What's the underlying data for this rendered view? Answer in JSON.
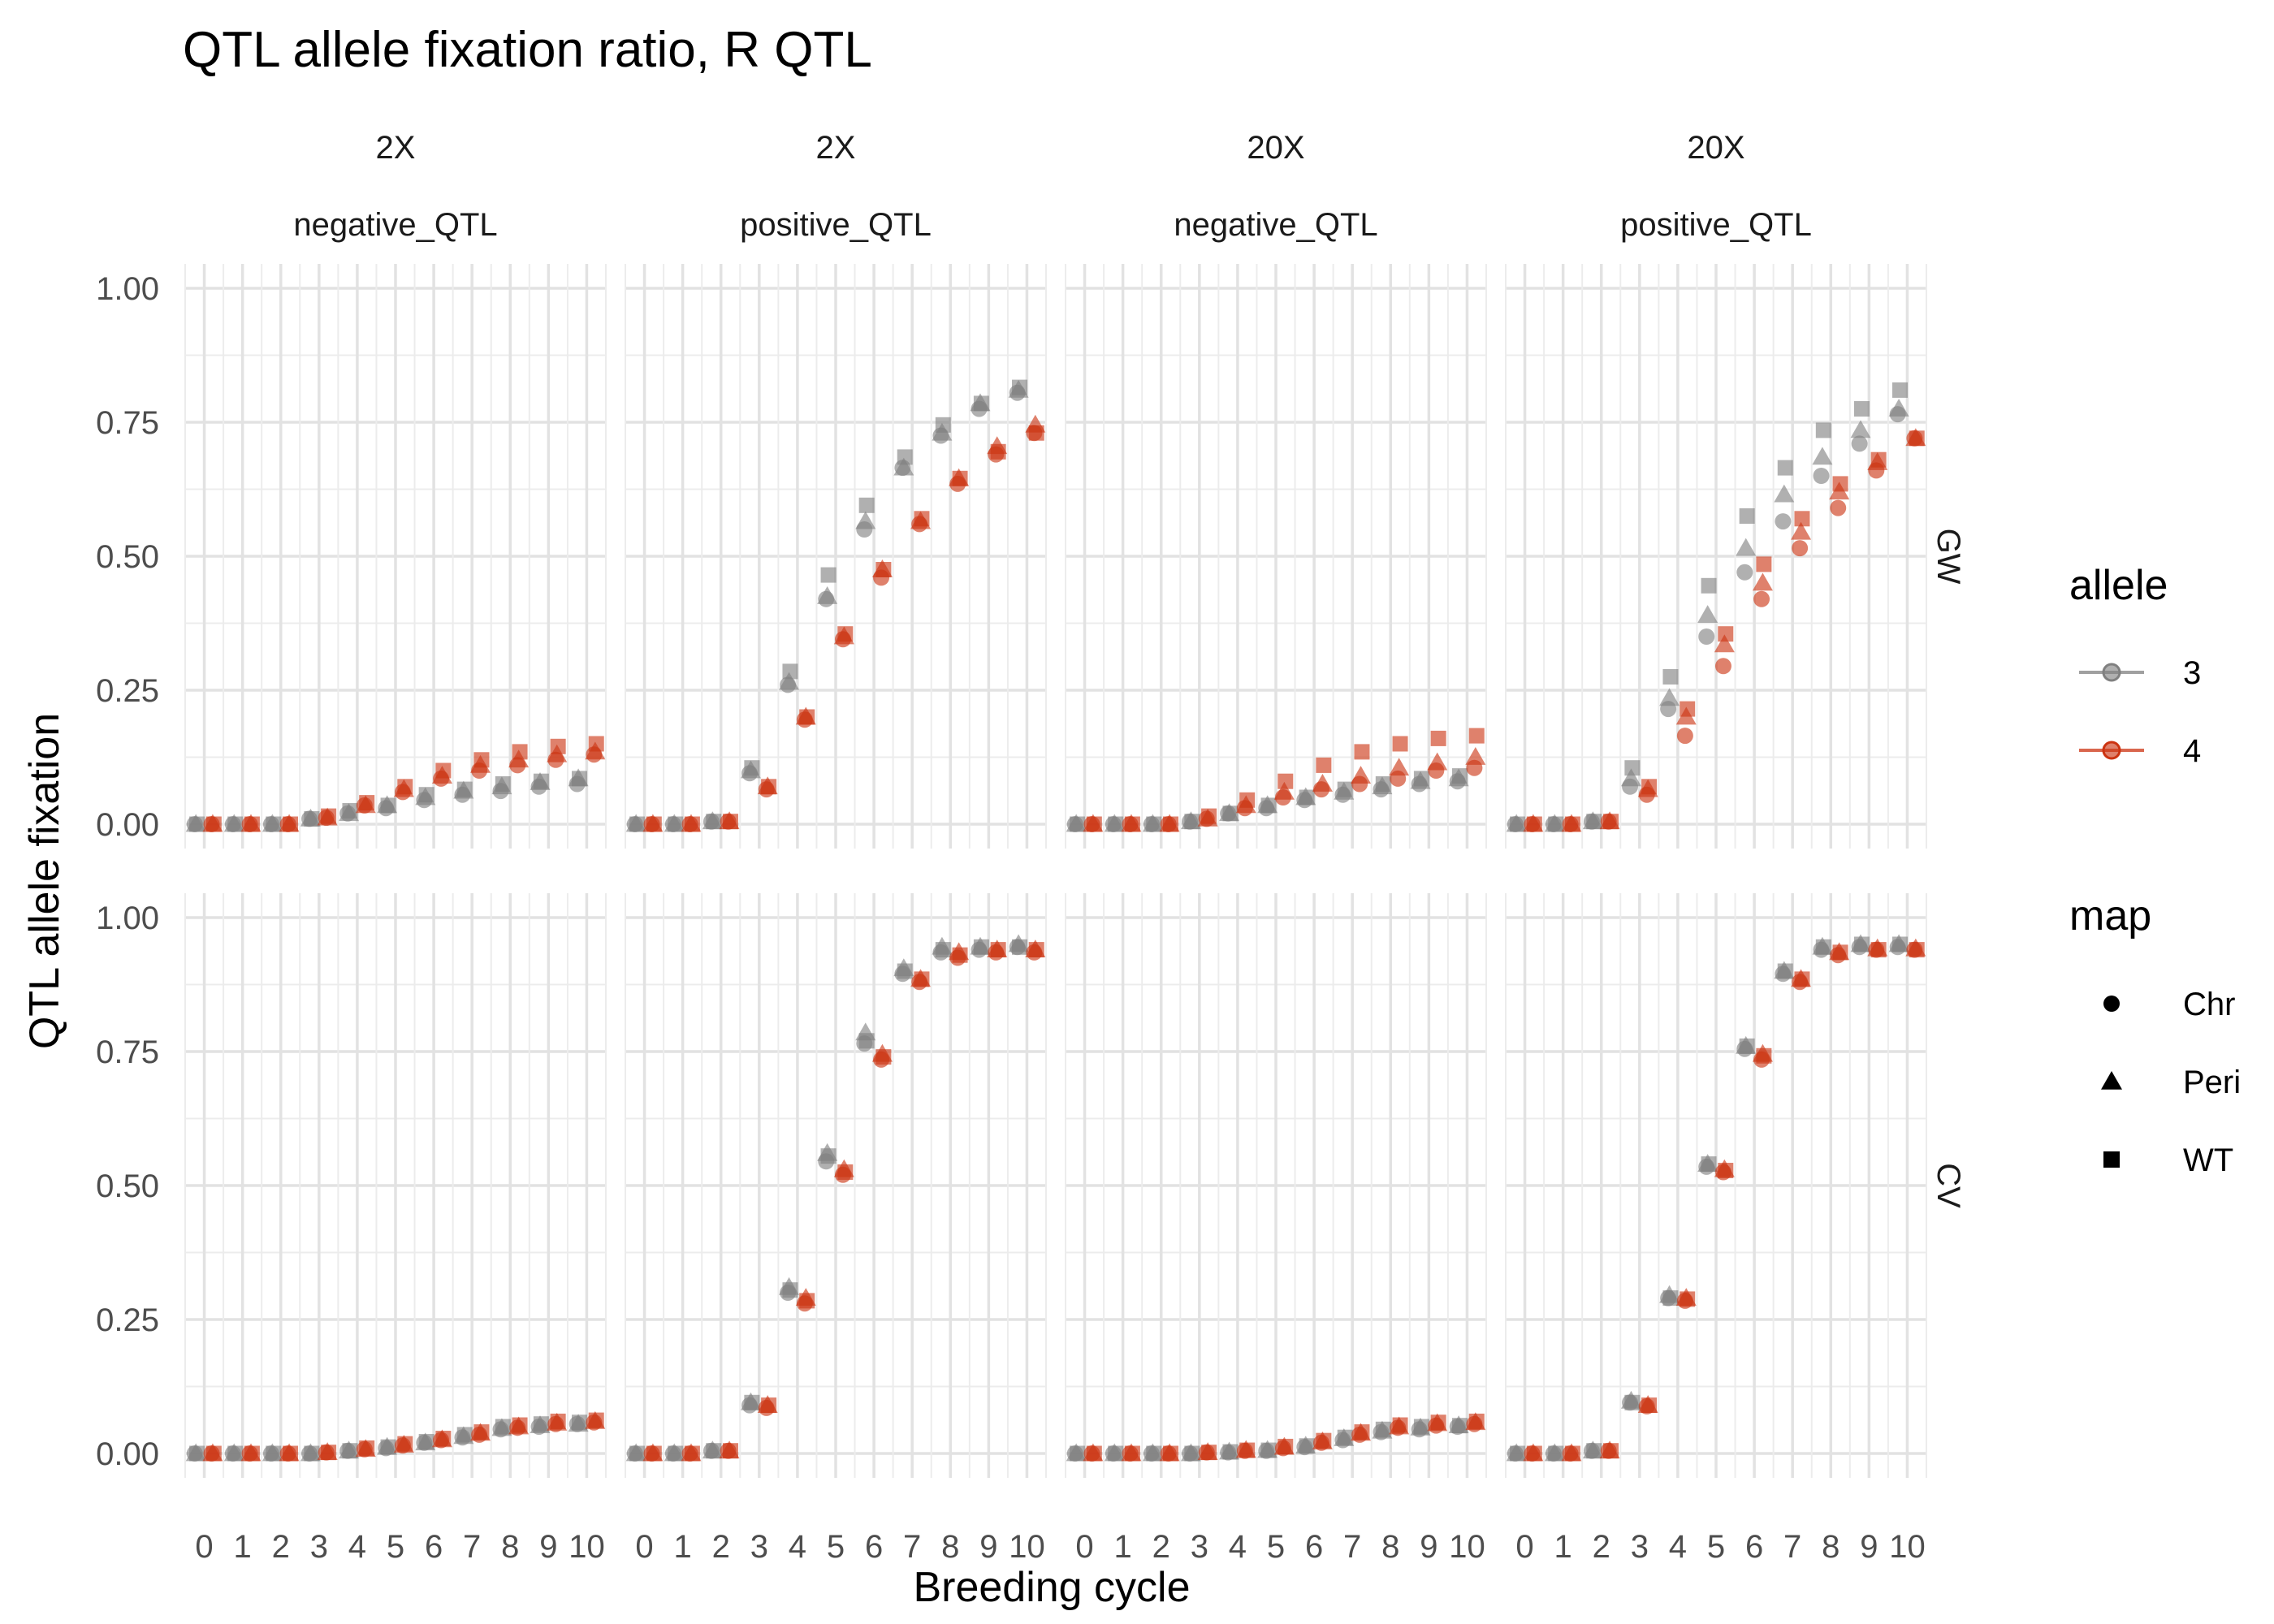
{
  "chart_data": {
    "type": "scatter",
    "title": "QTL allele fixation ratio, R QTL",
    "xlabel": "Breeding cycle",
    "ylabel": "QTL allele fixation",
    "xlim": [
      -0.5,
      10.5
    ],
    "ylim": [
      0,
      1
    ],
    "x_ticks": [
      "0",
      "1",
      "2",
      "3",
      "4",
      "5",
      "6",
      "7",
      "8",
      "9",
      "10"
    ],
    "y_ticks": [
      "0.00",
      "0.25",
      "0.50",
      "0.75",
      "1.00"
    ],
    "y_tick_values": [
      0,
      0.25,
      0.5,
      0.75,
      1.0
    ],
    "grid": true,
    "legend_position": "right",
    "col_facets": [
      {
        "top": "2X",
        "bottom": "negative_QTL"
      },
      {
        "top": "2X",
        "bottom": "positive_QTL"
      },
      {
        "top": "20X",
        "bottom": "negative_QTL"
      },
      {
        "top": "20X",
        "bottom": "positive_QTL"
      }
    ],
    "row_facets": [
      "GW",
      "CV"
    ],
    "colors": {
      "3": "#808080",
      "4": "#cc3311"
    },
    "legend": {
      "allele_title": "allele",
      "allele_items": [
        "3",
        "4"
      ],
      "map_title": "map",
      "map_items": [
        {
          "label": "Chr",
          "shape": "circle"
        },
        {
          "label": "Peri",
          "shape": "triangle"
        },
        {
          "label": "WT",
          "shape": "square"
        }
      ]
    },
    "x": [
      0,
      1,
      2,
      3,
      4,
      5,
      6,
      7,
      8,
      9,
      10
    ],
    "panels": [
      {
        "row": "GW",
        "col": 0,
        "series": [
          {
            "allele": "3",
            "map": "Chr",
            "values": [
              0,
              0,
              0,
              0.01,
              0.02,
              0.03,
              0.045,
              0.055,
              0.062,
              0.07,
              0.075
            ]
          },
          {
            "allele": "3",
            "map": "Peri",
            "values": [
              0,
              0,
              0,
              0.01,
              0.02,
              0.035,
              0.05,
              0.062,
              0.07,
              0.078,
              0.085
            ]
          },
          {
            "allele": "3",
            "map": "WT",
            "values": [
              0,
              0,
              0,
              0.01,
              0.025,
              0.035,
              0.055,
              0.065,
              0.075,
              0.08,
              0.085
            ]
          },
          {
            "allele": "4",
            "map": "Chr",
            "values": [
              0,
              0,
              0,
              0.012,
              0.035,
              0.06,
              0.085,
              0.1,
              0.11,
              0.12,
              0.13
            ]
          },
          {
            "allele": "4",
            "map": "Peri",
            "values": [
              0,
              0,
              0,
              0.012,
              0.035,
              0.065,
              0.09,
              0.11,
              0.12,
              0.13,
              0.135
            ]
          },
          {
            "allele": "4",
            "map": "WT",
            "values": [
              0,
              0,
              0,
              0.015,
              0.04,
              0.07,
              0.1,
              0.12,
              0.135,
              0.145,
              0.15
            ]
          }
        ]
      },
      {
        "row": "GW",
        "col": 1,
        "series": [
          {
            "allele": "3",
            "map": "Chr",
            "values": [
              0,
              0,
              0.005,
              0.095,
              0.26,
              0.42,
              0.55,
              0.665,
              0.725,
              0.775,
              0.805
            ]
          },
          {
            "allele": "3",
            "map": "Peri",
            "values": [
              0,
              0,
              0.005,
              0.1,
              0.265,
              0.425,
              0.565,
              0.665,
              0.73,
              0.785,
              0.81
            ]
          },
          {
            "allele": "3",
            "map": "WT",
            "values": [
              0,
              0,
              0.005,
              0.105,
              0.285,
              0.465,
              0.595,
              0.685,
              0.745,
              0.785,
              0.815
            ]
          },
          {
            "allele": "4",
            "map": "Chr",
            "values": [
              0,
              0,
              0.005,
              0.065,
              0.195,
              0.345,
              0.46,
              0.56,
              0.635,
              0.69,
              0.73
            ]
          },
          {
            "allele": "4",
            "map": "Peri",
            "values": [
              0,
              0,
              0.005,
              0.07,
              0.2,
              0.35,
              0.475,
              0.565,
              0.645,
              0.705,
              0.745
            ]
          },
          {
            "allele": "4",
            "map": "WT",
            "values": [
              0,
              0,
              0.005,
              0.07,
              0.2,
              0.355,
              0.475,
              0.57,
              0.645,
              0.695,
              0.73
            ]
          }
        ]
      },
      {
        "row": "GW",
        "col": 2,
        "series": [
          {
            "allele": "3",
            "map": "Chr",
            "values": [
              0,
              0,
              0,
              0.005,
              0.02,
              0.03,
              0.045,
              0.055,
              0.065,
              0.075,
              0.08
            ]
          },
          {
            "allele": "3",
            "map": "Peri",
            "values": [
              0,
              0,
              0,
              0.005,
              0.02,
              0.035,
              0.05,
              0.06,
              0.07,
              0.08,
              0.085
            ]
          },
          {
            "allele": "3",
            "map": "WT",
            "values": [
              0,
              0,
              0,
              0.005,
              0.02,
              0.035,
              0.05,
              0.065,
              0.075,
              0.085,
              0.09
            ]
          },
          {
            "allele": "4",
            "map": "Chr",
            "values": [
              0,
              0,
              0,
              0.01,
              0.03,
              0.05,
              0.065,
              0.075,
              0.085,
              0.1,
              0.105
            ]
          },
          {
            "allele": "4",
            "map": "Peri",
            "values": [
              0,
              0,
              0,
              0.01,
              0.035,
              0.06,
              0.075,
              0.09,
              0.105,
              0.115,
              0.125
            ]
          },
          {
            "allele": "4",
            "map": "WT",
            "values": [
              0,
              0,
              0,
              0.015,
              0.045,
              0.08,
              0.11,
              0.135,
              0.15,
              0.16,
              0.165
            ]
          }
        ]
      },
      {
        "row": "GW",
        "col": 3,
        "series": [
          {
            "allele": "3",
            "map": "Chr",
            "values": [
              0,
              0,
              0.005,
              0.07,
              0.215,
              0.35,
              0.47,
              0.565,
              0.65,
              0.71,
              0.765
            ]
          },
          {
            "allele": "3",
            "map": "Peri",
            "values": [
              0,
              0,
              0.005,
              0.085,
              0.235,
              0.39,
              0.515,
              0.615,
              0.685,
              0.735,
              0.775
            ]
          },
          {
            "allele": "3",
            "map": "WT",
            "values": [
              0,
              0,
              0.005,
              0.105,
              0.275,
              0.445,
              0.575,
              0.665,
              0.735,
              0.775,
              0.81
            ]
          },
          {
            "allele": "4",
            "map": "Chr",
            "values": [
              0,
              0,
              0.005,
              0.055,
              0.165,
              0.295,
              0.42,
              0.515,
              0.59,
              0.66,
              0.72
            ]
          },
          {
            "allele": "4",
            "map": "Peri",
            "values": [
              0,
              0,
              0.005,
              0.065,
              0.2,
              0.335,
              0.45,
              0.545,
              0.62,
              0.675,
              0.72
            ]
          },
          {
            "allele": "4",
            "map": "WT",
            "values": [
              0,
              0,
              0.005,
              0.07,
              0.215,
              0.355,
              0.485,
              0.57,
              0.635,
              0.68,
              0.72
            ]
          }
        ]
      },
      {
        "row": "CV",
        "col": 0,
        "series": [
          {
            "allele": "3",
            "map": "Chr",
            "values": [
              0,
              0,
              0,
              0,
              0.005,
              0.01,
              0.02,
              0.03,
              0.045,
              0.05,
              0.055
            ]
          },
          {
            "allele": "3",
            "map": "Peri",
            "values": [
              0,
              0,
              0,
              0,
              0.005,
              0.012,
              0.02,
              0.032,
              0.047,
              0.052,
              0.055
            ]
          },
          {
            "allele": "3",
            "map": "WT",
            "values": [
              0,
              0,
              0,
              0,
              0.005,
              0.012,
              0.022,
              0.035,
              0.05,
              0.055,
              0.058
            ]
          },
          {
            "allele": "4",
            "map": "Chr",
            "values": [
              0,
              0,
              0,
              0.002,
              0.008,
              0.015,
              0.025,
              0.035,
              0.048,
              0.055,
              0.058
            ]
          },
          {
            "allele": "4",
            "map": "Peri",
            "values": [
              0,
              0,
              0,
              0.002,
              0.008,
              0.016,
              0.026,
              0.038,
              0.05,
              0.057,
              0.06
            ]
          },
          {
            "allele": "4",
            "map": "WT",
            "values": [
              0,
              0,
              0,
              0.002,
              0.01,
              0.018,
              0.028,
              0.04,
              0.053,
              0.06,
              0.062
            ]
          }
        ]
      },
      {
        "row": "CV",
        "col": 1,
        "series": [
          {
            "allele": "3",
            "map": "Chr",
            "values": [
              0,
              0,
              0.005,
              0.09,
              0.3,
              0.545,
              0.765,
              0.895,
              0.935,
              0.94,
              0.945
            ]
          },
          {
            "allele": "3",
            "map": "Peri",
            "values": [
              0,
              0,
              0.005,
              0.095,
              0.31,
              0.56,
              0.785,
              0.905,
              0.945,
              0.945,
              0.95
            ]
          },
          {
            "allele": "3",
            "map": "WT",
            "values": [
              0,
              0,
              0.005,
              0.095,
              0.305,
              0.555,
              0.77,
              0.9,
              0.94,
              0.945,
              0.945
            ]
          },
          {
            "allele": "4",
            "map": "Chr",
            "values": [
              0,
              0,
              0.005,
              0.085,
              0.28,
              0.52,
              0.735,
              0.88,
              0.925,
              0.935,
              0.935
            ]
          },
          {
            "allele": "4",
            "map": "Peri",
            "values": [
              0,
              0,
              0.005,
              0.09,
              0.29,
              0.53,
              0.745,
              0.885,
              0.935,
              0.94,
              0.94
            ]
          },
          {
            "allele": "4",
            "map": "WT",
            "values": [
              0,
              0,
              0.005,
              0.09,
              0.285,
              0.525,
              0.74,
              0.885,
              0.93,
              0.94,
              0.94
            ]
          }
        ]
      },
      {
        "row": "CV",
        "col": 2,
        "series": [
          {
            "allele": "3",
            "map": "Chr",
            "values": [
              0,
              0,
              0,
              0,
              0.002,
              0.005,
              0.012,
              0.025,
              0.04,
              0.045,
              0.05
            ]
          },
          {
            "allele": "3",
            "map": "Peri",
            "values": [
              0,
              0,
              0,
              0,
              0.003,
              0.006,
              0.014,
              0.028,
              0.042,
              0.048,
              0.052
            ]
          },
          {
            "allele": "3",
            "map": "WT",
            "values": [
              0,
              0,
              0,
              0,
              0.003,
              0.006,
              0.014,
              0.03,
              0.045,
              0.05,
              0.052
            ]
          },
          {
            "allele": "4",
            "map": "Chr",
            "values": [
              0,
              0,
              0,
              0.002,
              0.005,
              0.01,
              0.02,
              0.035,
              0.048,
              0.052,
              0.055
            ]
          },
          {
            "allele": "4",
            "map": "Peri",
            "values": [
              0,
              0,
              0,
              0.002,
              0.006,
              0.012,
              0.022,
              0.038,
              0.05,
              0.056,
              0.058
            ]
          },
          {
            "allele": "4",
            "map": "WT",
            "values": [
              0,
              0,
              0,
              0.002,
              0.006,
              0.013,
              0.024,
              0.04,
              0.053,
              0.058,
              0.06
            ]
          }
        ]
      },
      {
        "row": "CV",
        "col": 3,
        "series": [
          {
            "allele": "3",
            "map": "Chr",
            "values": [
              0,
              0,
              0.005,
              0.095,
              0.29,
              0.535,
              0.755,
              0.895,
              0.94,
              0.945,
              0.945
            ]
          },
          {
            "allele": "3",
            "map": "Peri",
            "values": [
              0,
              0,
              0.005,
              0.098,
              0.295,
              0.54,
              0.76,
              0.9,
              0.945,
              0.95,
              0.95
            ]
          },
          {
            "allele": "3",
            "map": "WT",
            "values": [
              0,
              0,
              0.005,
              0.095,
              0.29,
              0.54,
              0.76,
              0.9,
              0.945,
              0.95,
              0.95
            ]
          },
          {
            "allele": "4",
            "map": "Chr",
            "values": [
              0,
              0,
              0.005,
              0.088,
              0.285,
              0.525,
              0.735,
              0.88,
              0.93,
              0.94,
              0.94
            ]
          },
          {
            "allele": "4",
            "map": "Peri",
            "values": [
              0,
              0,
              0.005,
              0.09,
              0.29,
              0.53,
              0.745,
              0.885,
              0.935,
              0.942,
              0.942
            ]
          },
          {
            "allele": "4",
            "map": "WT",
            "values": [
              0,
              0,
              0.005,
              0.09,
              0.288,
              0.528,
              0.742,
              0.885,
              0.935,
              0.94,
              0.94
            ]
          }
        ]
      }
    ]
  }
}
